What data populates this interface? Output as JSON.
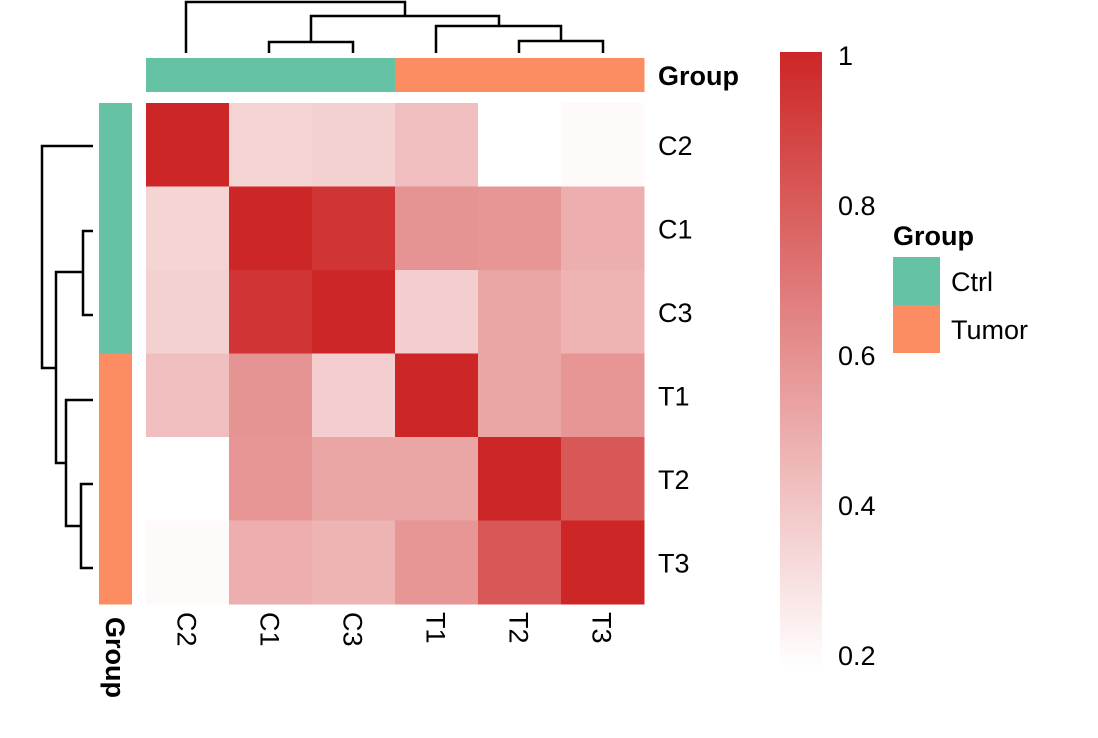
{
  "chart_data": {
    "type": "heatmap",
    "rows": [
      "C2",
      "C1",
      "C3",
      "T1",
      "T2",
      "T3"
    ],
    "columns": [
      "C2",
      "C1",
      "C3",
      "T1",
      "T2",
      "T3"
    ],
    "values": [
      [
        1.0,
        0.36,
        0.37,
        0.44,
        0.2,
        0.22
      ],
      [
        0.36,
        1.0,
        0.95,
        0.6,
        0.59,
        0.5
      ],
      [
        0.37,
        0.95,
        1.0,
        0.38,
        0.53,
        0.48
      ],
      [
        0.44,
        0.6,
        0.38,
        1.0,
        0.53,
        0.59
      ],
      [
        0.2,
        0.59,
        0.53,
        0.53,
        1.0,
        0.82
      ],
      [
        0.22,
        0.5,
        0.48,
        0.59,
        0.82,
        1.0
      ]
    ],
    "color_scale": {
      "min": 0.2,
      "max": 1,
      "low_color": "#FFFFFF",
      "high_color": "#CD2626",
      "ticks": [
        "1",
        "0.8",
        "0.6",
        "0.4",
        "0.2"
      ]
    },
    "annotation": {
      "title": "Group",
      "groups": [
        "Ctrl",
        "Ctrl",
        "Ctrl",
        "Tumor",
        "Tumor",
        "Tumor"
      ],
      "legend": [
        {
          "label": "Ctrl",
          "color": "#66C2A5"
        },
        {
          "label": "Tumor",
          "color": "#FC8D62"
        }
      ]
    },
    "dendrogram": "C2 | ((C1, C3), (T1, (T2, T3)))"
  }
}
